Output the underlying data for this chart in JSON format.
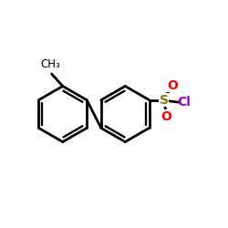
{
  "bg_color": "#ffffff",
  "bond_color": "#000000",
  "bond_width": 2.0,
  "S_color": "#808000",
  "O_color": "#ff0000",
  "Cl_color": "#9900cc",
  "C_color": "#000000",
  "r1cx": 0.27,
  "r1cy": 0.5,
  "r2cx": 0.55,
  "r2cy": 0.5,
  "ring_r": 0.125,
  "ao": 30,
  "CH3_label": "CH₃",
  "S_label": "S",
  "O_label": "O",
  "Cl_label": "Cl"
}
